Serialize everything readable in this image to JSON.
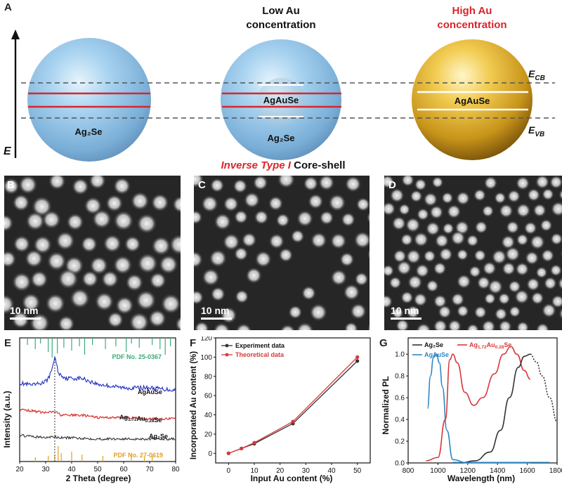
{
  "panelA": {
    "letter": "A",
    "axis_label": "E",
    "low_title": [
      "Low Au",
      "concentration"
    ],
    "high_title": [
      "High Au",
      "concentration"
    ],
    "sphere1_label": "Ag₂Se",
    "sphere2_core_label": "AgAuSe",
    "sphere2_shell_label": "Ag₂Se",
    "sphere3_label": "AgAuSe",
    "ecb": "E",
    "ecb_sub": "CB",
    "evb": "E",
    "evb_sub": "VB",
    "caption_red": "Inverse Type I",
    "caption_black": "Core-shell",
    "colors": {
      "blue_sphere": "#8fc3e8",
      "gold_sphere": "#d9a520",
      "band_line": "#d9262b",
      "title_red": "#d9262b"
    }
  },
  "panelB": {
    "letter": "B",
    "scale": "10 nm"
  },
  "panelC": {
    "letter": "C",
    "scale": "10 nm"
  },
  "panelD": {
    "letter": "D",
    "scale": "10 nm"
  },
  "panelE": {
    "letter": "E",
    "ylabel": "Intensity (a.u.)",
    "xlabel": "2 Theta (degree)",
    "xticks": [
      "20",
      "30",
      "40",
      "50",
      "60",
      "70",
      "80"
    ],
    "pdf_top": "PDF No. 25-0367",
    "pdf_bottom": "PDF No. 27-0619",
    "label_agause": "AgAuSe",
    "label_mid_base": "Ag",
    "label_mid_sub1": "1.72",
    "label_mid_mid": "Au",
    "label_mid_sub2": "0.28",
    "label_mid_end": "Se",
    "label_ag2se": "Ag₂Se",
    "colors": {
      "agause": "#1f2fbf",
      "mid": "#d42a2a",
      "ag2se": "#333333",
      "pdf_top": "#3aab7a",
      "pdf_bottom": "#e0a020"
    }
  },
  "panelF": {
    "letter": "F",
    "ylabel": "Incorporated Au content (%)",
    "xlabel": "Input Au content (%)",
    "legend": [
      "Experiment data",
      "Theoretical data"
    ],
    "xticks": [
      "0",
      "10",
      "20",
      "30",
      "40",
      "50"
    ],
    "yticks": [
      "0",
      "20",
      "40",
      "60",
      "80",
      "100",
      "120"
    ]
  },
  "panelG": {
    "letter": "G",
    "ylabel": "Normalized PL",
    "xlabel": "Wavelength (nm)",
    "xticks": [
      "800",
      "1000",
      "1200",
      "1400",
      "1600",
      "1800"
    ],
    "yticks": [
      "0.0",
      "0.2",
      "0.4",
      "0.6",
      "0.8",
      "1.0"
    ],
    "legend": {
      "ag2se": "Ag₂Se",
      "agause": "AgAuSe",
      "mid_base": "Ag",
      "mid_sub1": "1.72",
      "mid_mid": "Au",
      "mid_sub2": "0.28",
      "mid_end": "Se"
    }
  },
  "chart_data": [
    {
      "type": "line",
      "title": "",
      "xlabel": "Input Au content (%)",
      "ylabel": "Incorporated Au content (%)",
      "xlim": [
        -5,
        55
      ],
      "ylim": [
        -10,
        120
      ],
      "series": [
        {
          "name": "Experiment data",
          "x": [
            0,
            5,
            10,
            25,
            50
          ],
          "values": [
            0,
            5,
            10,
            31,
            96
          ]
        },
        {
          "name": "Theoretical data",
          "x": [
            0,
            5,
            10,
            25,
            50
          ],
          "values": [
            0,
            5,
            11,
            33,
            100
          ]
        }
      ]
    },
    {
      "type": "line",
      "title": "",
      "xlabel": "Wavelength (nm)",
      "ylabel": "Normalized PL",
      "xlim": [
        800,
        1800
      ],
      "ylim": [
        0,
        1.15
      ],
      "series": [
        {
          "name": "AgAuSe",
          "x": [
            930,
            950,
            970,
            990,
            1010,
            1030,
            1060,
            1100,
            1200,
            1400,
            1620
          ],
          "values": [
            0.5,
            0.8,
            0.97,
            1.0,
            0.92,
            0.7,
            0.3,
            0.03,
            0,
            0,
            0
          ]
        },
        {
          "name": "Ag1.72Au0.28Se",
          "x": [
            920,
            1000,
            1050,
            1080,
            1100,
            1130,
            1180,
            1240,
            1300,
            1380,
            1440,
            1490,
            1530,
            1580,
            1620
          ],
          "values": [
            0.02,
            0.05,
            0.4,
            0.95,
            1.0,
            0.92,
            0.65,
            0.53,
            0.6,
            0.82,
            1.0,
            1.07,
            1.0,
            0.85,
            0.77
          ]
        },
        {
          "name": "Ag2Se",
          "x": [
            1150,
            1250,
            1350,
            1420,
            1480,
            1540,
            1580,
            1620,
            1660,
            1700,
            1750,
            1800
          ],
          "values": [
            0,
            0.02,
            0.1,
            0.3,
            0.6,
            0.88,
            0.98,
            1.0,
            0.93,
            0.8,
            0.6,
            0.38
          ]
        }
      ]
    },
    {
      "type": "line",
      "title": "",
      "xlabel": "2 Theta (degree)",
      "ylabel": "Intensity (a.u.)",
      "xlim": [
        20,
        80
      ],
      "series": [
        {
          "name": "AgAuSe",
          "x": [
            20,
            25,
            30,
            32,
            33.5,
            35,
            38,
            44,
            50,
            60,
            70,
            80
          ],
          "values": [
            3.3,
            3.2,
            3.35,
            3.7,
            4.4,
            3.7,
            3.5,
            3.5,
            3.25,
            3.1,
            3.1,
            3.0
          ]
        },
        {
          "name": "Ag1.72Au0.28Se",
          "x": [
            20,
            30,
            33.5,
            36,
            44,
            50,
            60,
            70,
            80
          ],
          "values": [
            2.2,
            2.05,
            2.1,
            1.95,
            1.95,
            1.85,
            1.85,
            1.8,
            1.8
          ]
        },
        {
          "name": "Ag2Se",
          "x": [
            20,
            30,
            33,
            35,
            40,
            50,
            60,
            70,
            80
          ],
          "values": [
            1.1,
            1.0,
            1.05,
            1.0,
            1.0,
            0.95,
            0.95,
            0.95,
            0.95
          ]
        }
      ]
    }
  ]
}
